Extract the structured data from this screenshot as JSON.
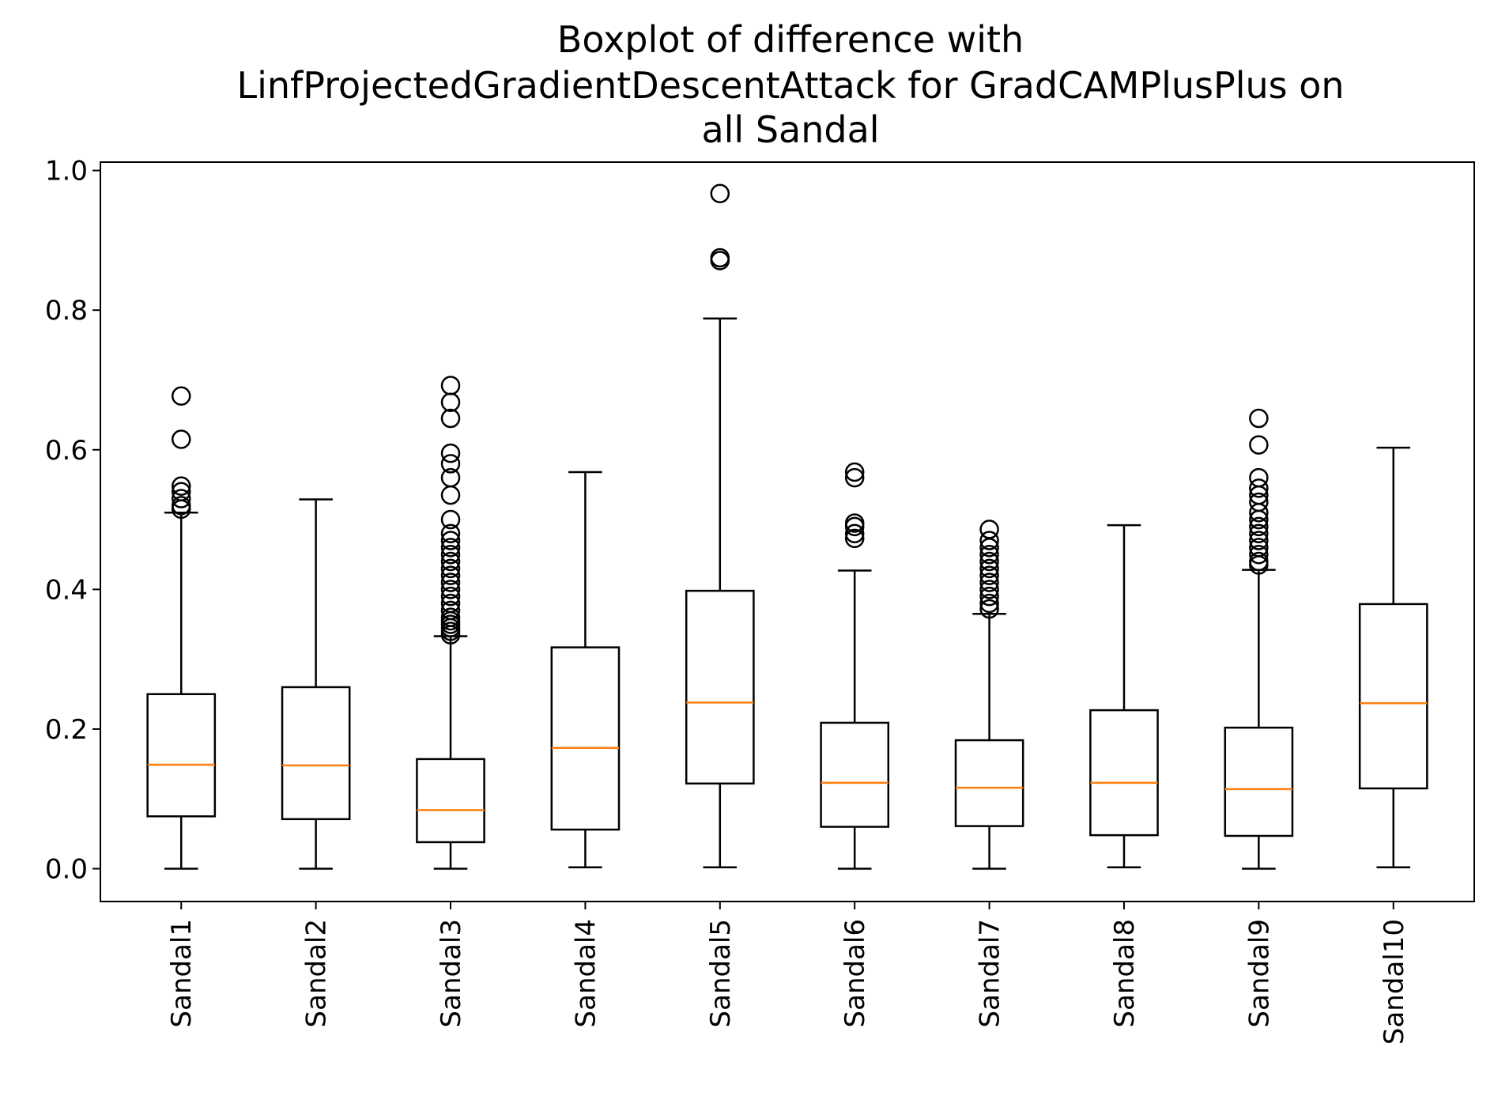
{
  "chart_data": {
    "type": "boxplot",
    "title_lines": [
      "Boxplot of difference with",
      "LinfProjectedGradientDescentAttack for GradCAMPlusPlus on",
      "all Sandal"
    ],
    "xlabel": "",
    "ylabel": "",
    "ylim": [
      -0.047,
      1.012
    ],
    "yticks": [
      0.0,
      0.2,
      0.4,
      0.6,
      0.8,
      1.0
    ],
    "ytick_labels": [
      "0.0",
      "0.2",
      "0.4",
      "0.6",
      "0.8",
      "1.0"
    ],
    "grid": false,
    "colors": {
      "box": "#000000",
      "median": "#ff7f0e",
      "flier": "#000000"
    },
    "categories": [
      "Sandal1",
      "Sandal2",
      "Sandal3",
      "Sandal4",
      "Sandal5",
      "Sandal6",
      "Sandal7",
      "Sandal8",
      "Sandal9",
      "Sandal10"
    ],
    "boxes": [
      {
        "label": "Sandal1",
        "whislo": 0.0,
        "q1": 0.075,
        "med": 0.149,
        "q3": 0.25,
        "whishi": 0.51,
        "fliers": [
          0.515,
          0.52,
          0.53,
          0.54,
          0.548,
          0.615,
          0.677
        ]
      },
      {
        "label": "Sandal2",
        "whislo": 0.0,
        "q1": 0.071,
        "med": 0.148,
        "q3": 0.26,
        "whishi": 0.529,
        "fliers": []
      },
      {
        "label": "Sandal3",
        "whislo": 0.0,
        "q1": 0.038,
        "med": 0.084,
        "q3": 0.157,
        "whishi": 0.333,
        "fliers": [
          0.335,
          0.34,
          0.345,
          0.35,
          0.355,
          0.36,
          0.37,
          0.38,
          0.39,
          0.4,
          0.41,
          0.42,
          0.43,
          0.44,
          0.45,
          0.46,
          0.47,
          0.48,
          0.5,
          0.535,
          0.56,
          0.58,
          0.595,
          0.645,
          0.668,
          0.692
        ]
      },
      {
        "label": "Sandal4",
        "whislo": 0.002,
        "q1": 0.056,
        "med": 0.173,
        "q3": 0.317,
        "whishi": 0.568,
        "fliers": []
      },
      {
        "label": "Sandal5",
        "whislo": 0.002,
        "q1": 0.122,
        "med": 0.238,
        "q3": 0.398,
        "whishi": 0.788,
        "fliers": [
          0.871,
          0.875,
          0.967
        ]
      },
      {
        "label": "Sandal6",
        "whislo": 0.0,
        "q1": 0.06,
        "med": 0.123,
        "q3": 0.209,
        "whishi": 0.427,
        "fliers": [
          0.473,
          0.48,
          0.49,
          0.495,
          0.56,
          0.568
        ]
      },
      {
        "label": "Sandal7",
        "whislo": 0.0,
        "q1": 0.061,
        "med": 0.116,
        "q3": 0.184,
        "whishi": 0.365,
        "fliers": [
          0.372,
          0.38,
          0.39,
          0.4,
          0.41,
          0.42,
          0.43,
          0.44,
          0.45,
          0.46,
          0.47,
          0.486
        ]
      },
      {
        "label": "Sandal8",
        "whislo": 0.002,
        "q1": 0.048,
        "med": 0.123,
        "q3": 0.227,
        "whishi": 0.492,
        "fliers": []
      },
      {
        "label": "Sandal9",
        "whislo": 0.0,
        "q1": 0.047,
        "med": 0.114,
        "q3": 0.202,
        "whishi": 0.428,
        "fliers": [
          0.435,
          0.44,
          0.45,
          0.46,
          0.47,
          0.48,
          0.49,
          0.5,
          0.51,
          0.525,
          0.535,
          0.545,
          0.56,
          0.607,
          0.645
        ]
      },
      {
        "label": "Sandal10",
        "whislo": 0.002,
        "q1": 0.115,
        "med": 0.237,
        "q3": 0.379,
        "whishi": 0.603,
        "fliers": []
      }
    ]
  }
}
